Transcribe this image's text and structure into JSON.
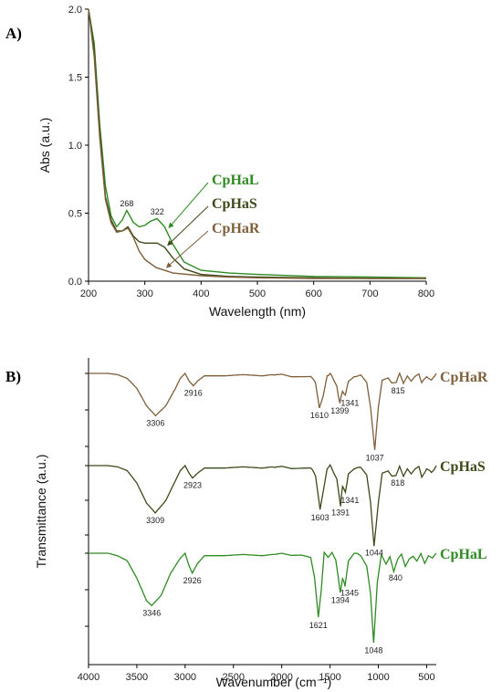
{
  "chart_data": [
    {
      "panel": "A)",
      "type": "line",
      "xlabel": "Wavelength (nm)",
      "ylabel": "Abs (a.u.)",
      "xlim": [
        200,
        800
      ],
      "ylim": [
        0,
        2.0
      ],
      "xticks": [
        "200",
        "300",
        "400",
        "500",
        "600",
        "700",
        "800"
      ],
      "yticks": [
        "0.0",
        "0.5",
        "1.0",
        "1.5",
        "2.0"
      ],
      "grid": false,
      "legend": "right",
      "annotations": [
        {
          "text": "268",
          "x": 268,
          "y": 0.55
        },
        {
          "text": "322",
          "x": 322,
          "y": 0.49
        }
      ],
      "series": [
        {
          "name": "CpHaL",
          "color": "#2e8b22",
          "x": [
            200,
            210,
            220,
            230,
            240,
            250,
            260,
            268,
            280,
            290,
            300,
            310,
            322,
            335,
            350,
            370,
            400,
            450,
            500,
            600,
            700,
            800
          ],
          "y": [
            2.0,
            1.75,
            1.15,
            0.7,
            0.48,
            0.4,
            0.45,
            0.52,
            0.43,
            0.4,
            0.41,
            0.44,
            0.46,
            0.4,
            0.27,
            0.14,
            0.08,
            0.06,
            0.05,
            0.035,
            0.03,
            0.025
          ]
        },
        {
          "name": "CpHaS",
          "color": "#3b4a18",
          "x": [
            200,
            210,
            220,
            230,
            240,
            250,
            260,
            270,
            280,
            290,
            300,
            310,
            322,
            335,
            350,
            370,
            400,
            450,
            500,
            600,
            700,
            800
          ],
          "y": [
            2.0,
            1.7,
            1.1,
            0.62,
            0.45,
            0.37,
            0.37,
            0.4,
            0.33,
            0.29,
            0.28,
            0.28,
            0.28,
            0.25,
            0.17,
            0.09,
            0.05,
            0.035,
            0.03,
            0.025,
            0.02,
            0.02
          ]
        },
        {
          "name": "CpHaR",
          "color": "#7f5f3a",
          "x": [
            200,
            210,
            220,
            230,
            240,
            250,
            260,
            270,
            280,
            290,
            300,
            320,
            350,
            400,
            450,
            500,
            600,
            700,
            800
          ],
          "y": [
            2.0,
            1.65,
            1.05,
            0.6,
            0.43,
            0.36,
            0.37,
            0.39,
            0.32,
            0.22,
            0.16,
            0.1,
            0.06,
            0.04,
            0.03,
            0.025,
            0.02,
            0.02,
            0.02
          ]
        }
      ]
    },
    {
      "panel": "B)",
      "type": "line",
      "xlabel": "Wavenumber (cm⁻¹)",
      "ylabel": "Transmittance (a.u.)",
      "xlim": [
        4000,
        400
      ],
      "xticks": [
        "4000",
        "3500",
        "3000",
        "2500",
        "2000",
        "1500",
        "1000",
        "500"
      ],
      "grid": false,
      "legend": "right",
      "series": [
        {
          "name": "CpHaR",
          "color": "#7f5f3a",
          "annotations": [
            {
              "text": "3306",
              "x": 3306
            },
            {
              "text": "2916",
              "x": 2916
            },
            {
              "text": "1610",
              "x": 1610
            },
            {
              "text": "1399",
              "x": 1399
            },
            {
              "text": "1341",
              "x": 1341
            },
            {
              "text": "1037",
              "x": 1037
            },
            {
              "text": "815",
              "x": 815
            }
          ],
          "x": [
            4000,
            3900,
            3800,
            3700,
            3600,
            3500,
            3400,
            3306,
            3200,
            3100,
            3050,
            3000,
            2960,
            2916,
            2870,
            2800,
            2600,
            2400,
            2200,
            2000,
            1900,
            1800,
            1700,
            1650,
            1610,
            1570,
            1530,
            1500,
            1470,
            1430,
            1399,
            1370,
            1341,
            1310,
            1250,
            1180,
            1120,
            1080,
            1037,
            1000,
            960,
            900,
            860,
            815,
            780,
            740,
            700,
            660,
            620,
            580,
            550,
            500,
            450,
            400
          ],
          "y": [
            0,
            0,
            0,
            -0.5,
            -2,
            -6,
            -13,
            -17,
            -13,
            -6,
            -2,
            0,
            -3,
            -5,
            -3,
            -1,
            -1,
            -0.5,
            -1,
            0,
            -1,
            -1,
            -1,
            -4,
            -14,
            -9,
            -1,
            0,
            -2,
            -5,
            -12,
            -7,
            -9,
            -3,
            -1,
            -1,
            -4,
            -14,
            -31,
            -14,
            -3,
            -2,
            -4,
            -4,
            0,
            -4,
            -1,
            -3,
            -1,
            0,
            -4,
            -1,
            -3,
            0
          ]
        },
        {
          "name": "CpHaS",
          "color": "#3b4a18",
          "annotations": [
            {
              "text": "3309",
              "x": 3309
            },
            {
              "text": "2923",
              "x": 2923
            },
            {
              "text": "1603",
              "x": 1603
            },
            {
              "text": "1391",
              "x": 1391
            },
            {
              "text": "1341",
              "x": 1341
            },
            {
              "text": "1044",
              "x": 1044
            },
            {
              "text": "818",
              "x": 818
            }
          ],
          "x": [
            4000,
            3900,
            3800,
            3700,
            3600,
            3500,
            3400,
            3309,
            3200,
            3100,
            3050,
            3000,
            2960,
            2923,
            2870,
            2800,
            2600,
            2400,
            2200,
            2000,
            1900,
            1800,
            1700,
            1650,
            1603,
            1570,
            1530,
            1500,
            1470,
            1430,
            1391,
            1370,
            1341,
            1310,
            1250,
            1180,
            1120,
            1080,
            1044,
            1000,
            960,
            900,
            860,
            818,
            780,
            740,
            700,
            660,
            620,
            580,
            550,
            500,
            450,
            400
          ],
          "y": [
            0,
            0,
            0,
            -0.5,
            -2,
            -7,
            -15,
            -19,
            -14,
            -6,
            -2,
            0,
            -3,
            -5,
            -3,
            -1,
            -1,
            -0.5,
            -1,
            0,
            -1,
            -1,
            -1,
            -4,
            -18,
            -10,
            -1,
            0,
            -2,
            -5,
            -16,
            -8,
            -11,
            -3,
            -1,
            -1,
            -4,
            -15,
            -32,
            -15,
            -3,
            -2,
            -4,
            -4,
            0,
            -4,
            -1,
            -3,
            -1,
            0,
            -5,
            -1,
            -3,
            0
          ]
        },
        {
          "name": "CpHaL",
          "color": "#2e8b22",
          "annotations": [
            {
              "text": "3346",
              "x": 3346
            },
            {
              "text": "2926",
              "x": 2926
            },
            {
              "text": "1621",
              "x": 1621
            },
            {
              "text": "1394",
              "x": 1394
            },
            {
              "text": "1345",
              "x": 1345
            },
            {
              "text": "1048",
              "x": 1048
            },
            {
              "text": "840",
              "x": 840
            }
          ],
          "x": [
            4000,
            3900,
            3800,
            3700,
            3600,
            3500,
            3400,
            3346,
            3250,
            3150,
            3050,
            3000,
            2960,
            2926,
            2870,
            2800,
            2600,
            2400,
            2200,
            2000,
            1900,
            1800,
            1700,
            1660,
            1621,
            1590,
            1560,
            1520,
            1480,
            1440,
            1394,
            1370,
            1345,
            1310,
            1250,
            1180,
            1120,
            1080,
            1048,
            1010,
            970,
            920,
            880,
            840,
            800,
            760,
            720,
            680,
            640,
            600,
            560,
            520,
            480,
            440,
            400
          ],
          "y": [
            0,
            0,
            0,
            -1,
            -3,
            -10,
            -19,
            -21,
            -17,
            -8,
            -2,
            0,
            -5,
            -8,
            -4,
            -1,
            -1,
            -0.5,
            -1,
            0,
            -1,
            -1,
            -2,
            -10,
            -26,
            -14,
            0,
            -2,
            0,
            -3,
            -16,
            -10,
            -13,
            -3,
            0,
            -1,
            -5,
            -16,
            -36,
            -12,
            -1,
            -4,
            -1,
            -7,
            -2,
            0,
            -5,
            -2,
            -1,
            -3,
            0,
            -4,
            -1,
            -2,
            0
          ]
        }
      ]
    }
  ]
}
